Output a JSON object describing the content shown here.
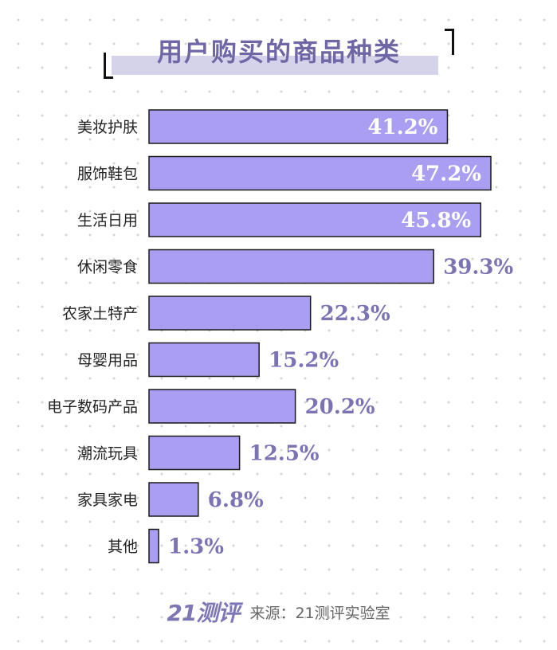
{
  "title": "用户购买的商品种类",
  "footer": {
    "logo": "21测评",
    "source": "来源：21测评实验室"
  },
  "chart_data": {
    "type": "bar",
    "orientation": "horizontal",
    "categories": [
      "美妆护肤",
      "服饰鞋包",
      "生活日用",
      "休闲零食",
      "农家土特产",
      "母婴用品",
      "电子数码产品",
      "潮流玩具",
      "家具家电",
      "其他"
    ],
    "values": [
      41.2,
      47.2,
      45.8,
      39.3,
      22.3,
      15.2,
      20.2,
      12.5,
      6.8,
      1.3
    ],
    "value_labels": [
      "41.2%",
      "47.2%",
      "45.8%",
      "39.3%",
      "22.3%",
      "15.2%",
      "20.2%",
      "12.5%",
      "6.8%",
      "1.3%"
    ],
    "unit": "%",
    "xlim": [
      0,
      47.2
    ],
    "bar_color": "#a99ef2",
    "label_color": "#7b73b3",
    "grid": false,
    "legend": false
  }
}
